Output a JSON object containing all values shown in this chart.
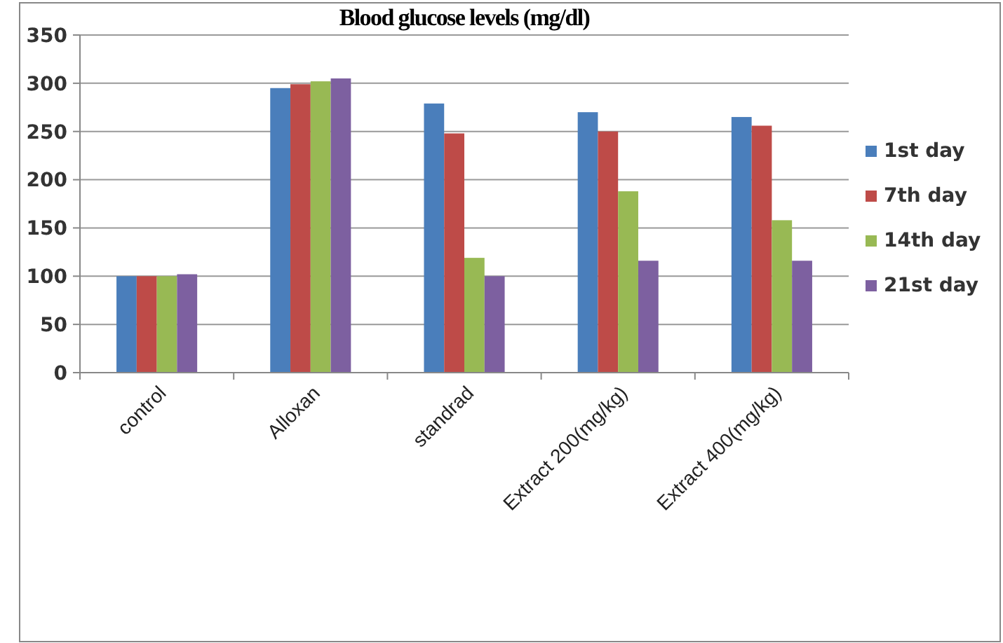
{
  "chart_data": {
    "type": "bar",
    "title": "Blood glucose levels (mg/dl)",
    "categories": [
      "control",
      "Alloxan",
      "standrad",
      "Extract 200(mg/kg)",
      "Extract 400(mg/kg)"
    ],
    "series": [
      {
        "name": "1st day",
        "color": "#4a7ebb",
        "values": [
          100,
          295,
          279,
          270,
          265
        ]
      },
      {
        "name": "7th day",
        "color": "#be4b48",
        "values": [
          100,
          299,
          248,
          250,
          256
        ]
      },
      {
        "name": "14th day",
        "color": "#98b954",
        "values": [
          100,
          302,
          119,
          188,
          158
        ]
      },
      {
        "name": "21st day",
        "color": "#7d60a0",
        "values": [
          102,
          305,
          100,
          116,
          116
        ]
      }
    ],
    "ylim": [
      0,
      350
    ],
    "yticks": [
      0,
      50,
      100,
      150,
      200,
      250,
      300,
      350
    ],
    "grid": "y",
    "legend": "right"
  }
}
